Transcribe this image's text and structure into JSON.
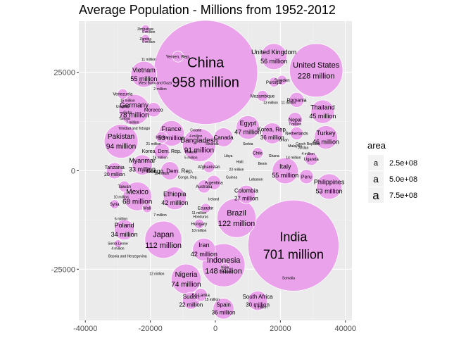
{
  "chart_data": {
    "type": "scatter",
    "title": "Average Population - Millions from 1952-2012",
    "xlabel": "",
    "ylabel": "",
    "xlim": [
      -42000,
      42000
    ],
    "ylim": [
      -38000,
      38000
    ],
    "x_ticks": [
      -40000,
      -20000,
      0,
      20000,
      40000
    ],
    "x_tick_labels": [
      "-40000",
      "-20000",
      "0",
      "20000",
      "40000"
    ],
    "y_ticks": [
      -25000,
      0,
      25000
    ],
    "y_tick_labels": [
      "-25000",
      "0",
      "25000"
    ],
    "grid": true,
    "bubble_color": "#eaa2ea",
    "panel_color": "#ebebeb",
    "legend": {
      "title": "area",
      "placement": "right",
      "key_glyph": "a",
      "entries": [
        {
          "label": "2.5e+08",
          "size": 11
        },
        {
          "label": "5.0e+08",
          "size": 14
        },
        {
          "label": "7.5e+08",
          "size": 17
        }
      ]
    },
    "bubbles": [
      {
        "country": "China",
        "pop": "958 million",
        "x": -3000,
        "y": 25000,
        "r": 16000,
        "fs": 20
      },
      {
        "country": "India",
        "pop": "701 million",
        "x": 24000,
        "y": -19000,
        "r": 14000,
        "fs": 18
      },
      {
        "country": "United States",
        "pop": "228 million",
        "x": 31000,
        "y": 25500,
        "r": 8200,
        "fs": 11
      },
      {
        "country": "Indonesia",
        "pop": "148 million",
        "x": 2500,
        "y": -24000,
        "r": 6600,
        "fs": 11
      },
      {
        "country": "Brazil",
        "pop": "122 million",
        "x": 6500,
        "y": -12000,
        "r": 6000,
        "fs": 11
      },
      {
        "country": "Japan",
        "pop": "112 million",
        "x": -16000,
        "y": -17500,
        "r": 5700,
        "fs": 11
      },
      {
        "country": "Bangladesh",
        "pop": "91 million",
        "x": -5000,
        "y": 6500,
        "r": 5100,
        "fs": 10
      },
      {
        "country": "Pakistan",
        "pop": "94 million",
        "x": -29000,
        "y": 7500,
        "r": 5200,
        "fs": 10
      },
      {
        "country": "Germany",
        "pop": "78 million",
        "x": -25000,
        "y": 15500,
        "r": 4700,
        "fs": 10
      },
      {
        "country": "Nigeria",
        "pop": "74 million",
        "x": -9000,
        "y": -27500,
        "r": 4600,
        "fs": 10
      },
      {
        "country": "Mexico",
        "pop": "68 million",
        "x": -24000,
        "y": -6500,
        "r": 4400,
        "fs": 10
      },
      {
        "country": "Vietnam",
        "pop": "55 million",
        "x": -22000,
        "y": 24500,
        "r": 4000,
        "fs": 9
      },
      {
        "country": "United Kingdom",
        "pop": "56 million",
        "x": 18000,
        "y": 29000,
        "r": 4000,
        "fs": 9
      },
      {
        "country": "Italy",
        "pop": "55 million",
        "x": 21500,
        "y": 0,
        "r": 4000,
        "fs": 9
      },
      {
        "country": "Philippines",
        "pop": "53 million",
        "x": 35000,
        "y": -4000,
        "r": 3900,
        "fs": 9
      },
      {
        "country": "France",
        "pop": "53 million",
        "x": -13500,
        "y": 9500,
        "r": 3900,
        "fs": 9
      },
      {
        "country": "Thailand",
        "pop": "45 million",
        "x": 33000,
        "y": 15000,
        "r": 3600,
        "fs": 9
      },
      {
        "country": "Turkey",
        "pop": "46 million",
        "x": 34000,
        "y": 8500,
        "r": 3600,
        "fs": 9
      },
      {
        "country": "Egypt",
        "pop": "47 million",
        "x": 10000,
        "y": 11000,
        "r": 3600,
        "fs": 9
      },
      {
        "country": "Iran",
        "pop": "42 million",
        "x": -3500,
        "y": -20000,
        "r": 3500,
        "fs": 9
      },
      {
        "country": "Ethiopia",
        "pop": "42 million",
        "x": -12500,
        "y": -7000,
        "r": 3500,
        "fs": 9
      },
      {
        "country": "Poland",
        "pop": "34 million",
        "x": -28000,
        "y": -15000,
        "r": 3100,
        "fs": 9
      },
      {
        "country": "Myanmar",
        "pop": "33 million",
        "x": -22500,
        "y": 1500,
        "r": 3100,
        "fs": 9
      },
      {
        "country": "South Africa",
        "pop": "30 million",
        "x": 13000,
        "y": -33000,
        "r": 3000,
        "fs": 8
      },
      {
        "country": "Canada",
        "pop": "",
        "x": 2500,
        "y": 8500,
        "r": 2900,
        "fs": 8
      },
      {
        "country": "Spain",
        "pop": "36 million",
        "x": 2500,
        "y": -35000,
        "r": 3200,
        "fs": 8
      },
      {
        "country": "Sudan",
        "pop": "22 million",
        "x": -7500,
        "y": -33000,
        "r": 2600,
        "fs": 8
      },
      {
        "country": "Korea, Rep.",
        "pop": "36 million",
        "x": 17500,
        "y": 9500,
        "r": 3200,
        "fs": 8
      },
      {
        "country": "Colombia",
        "pop": "27 million",
        "x": 9500,
        "y": -6000,
        "r": 2800,
        "fs": 8
      },
      {
        "country": "Tanzania",
        "pop": "20 million",
        "x": -31000,
        "y": 0,
        "r": 2500,
        "fs": 7
      },
      {
        "country": "Congo, Dem. Rep.",
        "pop": "",
        "x": -14000,
        "y": 0,
        "r": 2800,
        "fs": 8
      },
      {
        "country": "Korea, Dem. Rep.",
        "pop": "",
        "x": -16500,
        "y": 5000,
        "r": 2400,
        "fs": 7
      },
      {
        "country": "Nepal",
        "pop": "",
        "x": 24500,
        "y": 13000,
        "r": 2200,
        "fs": 7
      },
      {
        "country": "Romania",
        "pop": "",
        "x": 25000,
        "y": 18000,
        "r": 2300,
        "fs": 7
      },
      {
        "country": "Peru",
        "pop": "",
        "x": 28000,
        "y": -1500,
        "r": 2200,
        "fs": 7
      },
      {
        "country": "Morocco",
        "pop": "",
        "x": -19000,
        "y": 15500,
        "r": 2200,
        "fs": 7
      },
      {
        "country": "Venezuela",
        "pop": "",
        "x": -28500,
        "y": 19500,
        "r": 1600,
        "fs": 6
      },
      {
        "country": "Sri Lanka",
        "pop": "",
        "x": -4500,
        "y": -31500,
        "r": 2000,
        "fs": 6
      },
      {
        "country": "Uganda",
        "pop": "",
        "x": 29500,
        "y": 3000,
        "r": 2000,
        "fs": 6
      },
      {
        "country": "Netherlands",
        "pop": "",
        "x": 25000,
        "y": 9500,
        "r": 2000,
        "fs": 6
      },
      {
        "country": "Yemen, Rep.",
        "pop": "",
        "x": -11500,
        "y": 29000,
        "r": 1700,
        "fs": 6
      },
      {
        "country": "Kenya",
        "pop": "",
        "x": -16500,
        "y": 8500,
        "r": 1800,
        "fs": 6
      },
      {
        "country": "Taiwan",
        "pop": "",
        "x": -28000,
        "y": -4000,
        "r": 1700,
        "fs": 6
      },
      {
        "country": "Afghanistan",
        "pop": "",
        "x": -2000,
        "y": 1000,
        "r": 1800,
        "fs": 6
      },
      {
        "country": "Argentina",
        "pop": "",
        "x": -500,
        "y": -3000,
        "r": 2200,
        "fs": 6
      },
      {
        "country": "Australia",
        "pop": "",
        "x": -3500,
        "y": -4000,
        "r": 2000,
        "fs": 6
      },
      {
        "country": "Sweden",
        "pop": "",
        "x": 20500,
        "y": 23000,
        "r": 1500,
        "fs": 6
      },
      {
        "country": "Portugal",
        "pop": "",
        "x": 18000,
        "y": 22500,
        "r": 1500,
        "fs": 6
      },
      {
        "country": "Mozambique",
        "pop": "",
        "x": 14500,
        "y": 19000,
        "r": 1700,
        "fs": 6
      },
      {
        "country": "Chile",
        "pop": "",
        "x": 13000,
        "y": 4500,
        "r": 1700,
        "fs": 6
      },
      {
        "country": "Ecuador",
        "pop": "",
        "x": -3000,
        "y": -9500,
        "r": 1500,
        "fs": 6
      },
      {
        "country": "Hungary",
        "pop": "",
        "x": -5000,
        "y": -13500,
        "r": 1500,
        "fs": 6
      },
      {
        "country": "Mali",
        "pop": "",
        "x": -21000,
        "y": -9500,
        "r": 1400,
        "fs": 6
      },
      {
        "country": "Syria",
        "pop": "",
        "x": -31000,
        "y": -8500,
        "r": 1400,
        "fs": 6
      },
      {
        "country": "Niger",
        "pop": "",
        "x": 3000,
        "y": -24500,
        "r": 1200,
        "fs": 5
      },
      {
        "country": "Sierra Leone",
        "pop": "",
        "x": -30000,
        "y": -18500,
        "r": 1200,
        "fs": 5
      },
      {
        "country": "Zimbabwe",
        "pop": "",
        "x": -21500,
        "y": 36000,
        "r": 1300,
        "fs": 5
      },
      {
        "country": "Zambia",
        "pop": "",
        "x": -21500,
        "y": 33500,
        "r": 1300,
        "fs": 5
      }
    ],
    "background_labels": [
      {
        "t": "6 million",
        "x": -20500,
        "y": 35000
      },
      {
        "t": "6 million",
        "x": -20500,
        "y": 32500
      },
      {
        "t": "11 million",
        "x": -20500,
        "y": 28000
      },
      {
        "t": "West Bank and Gaza",
        "x": -18500,
        "y": 22000
      },
      {
        "t": "2 million",
        "x": -17000,
        "y": 20500
      },
      {
        "t": "15 million",
        "x": -27000,
        "y": 17500
      },
      {
        "t": "Uruguay",
        "x": -28500,
        "y": 16000
      },
      {
        "t": "Cuba",
        "x": -27000,
        "y": 14500
      },
      {
        "t": "Tunisia",
        "x": -28000,
        "y": 13000
      },
      {
        "t": "7 million",
        "x": -25500,
        "y": 12000
      },
      {
        "t": "Trinidad and Tobago",
        "x": -25000,
        "y": 10500
      },
      {
        "t": "21 million",
        "x": -19000,
        "y": 6500
      },
      {
        "t": "16 million",
        "x": -17000,
        "y": 3000
      },
      {
        "t": "Finland",
        "x": -7500,
        "y": 4500
      },
      {
        "t": "5 million",
        "x": -7500,
        "y": 3000
      },
      {
        "t": "Croatia",
        "x": -6000,
        "y": 10000
      },
      {
        "t": "4 million",
        "x": -6000,
        "y": 8500
      },
      {
        "t": "17 million",
        "x": -20500,
        "y": -500
      },
      {
        "t": "18 million",
        "x": -16500,
        "y": -1000
      },
      {
        "t": "10 million",
        "x": -29000,
        "y": -7000
      },
      {
        "t": "6 million",
        "x": -29000,
        "y": -12500
      },
      {
        "t": "7 million",
        "x": -17000,
        "y": -11500
      },
      {
        "t": "11 million",
        "x": -5000,
        "y": -11000
      },
      {
        "t": "10 million",
        "x": -5000,
        "y": -15500
      },
      {
        "t": "4 million",
        "x": -30000,
        "y": -20000
      },
      {
        "t": "Bosnia and Herzegovina",
        "x": -27000,
        "y": -22000
      },
      {
        "t": "12 million",
        "x": -18000,
        "y": -26500
      },
      {
        "t": "15 million",
        "x": -1000,
        "y": -33000
      },
      {
        "t": "7 million",
        "x": 3000,
        "y": -26000
      },
      {
        "t": "5 million",
        "x": 14000,
        "y": -35000
      },
      {
        "t": "Somalia",
        "x": 22500,
        "y": -27500
      },
      {
        "t": "14 million",
        "x": 24000,
        "y": 3000
      },
      {
        "t": "4 million",
        "x": 28500,
        "y": 4000
      },
      {
        "t": "7 million",
        "x": 24500,
        "y": 11500
      },
      {
        "t": "11 million",
        "x": 22500,
        "y": 17000
      },
      {
        "t": "13 million",
        "x": 17000,
        "y": 17000
      },
      {
        "t": "23 million",
        "x": 6500,
        "y": 0
      },
      {
        "t": "Guinea",
        "x": 5000,
        "y": -2000
      },
      {
        "t": "Ireland",
        "x": -500,
        "y": -7500
      },
      {
        "t": "Honduras",
        "x": -4500,
        "y": -12000
      },
      {
        "t": "Libya",
        "x": 4000,
        "y": 3500
      },
      {
        "t": "Oman",
        "x": 21000,
        "y": 7500
      },
      {
        "t": "Malaysia",
        "x": 24500,
        "y": 6000
      },
      {
        "t": "Jordan",
        "x": 27000,
        "y": 5500
      },
      {
        "t": "Czech Republic",
        "x": 28500,
        "y": 6500
      },
      {
        "t": "Ghana",
        "x": 18000,
        "y": 3500
      },
      {
        "t": "Benin",
        "x": 14500,
        "y": 1500
      },
      {
        "t": "Haiti",
        "x": 7500,
        "y": 2000
      },
      {
        "t": "Serbia",
        "x": 10000,
        "y": 6500
      },
      {
        "t": "Lebanon",
        "x": 12500,
        "y": -2500
      },
      {
        "t": "Rwanda",
        "x": -1000,
        "y": 6500
      },
      {
        "t": "Congo, Rep.",
        "x": -8500,
        "y": -2000
      }
    ]
  }
}
